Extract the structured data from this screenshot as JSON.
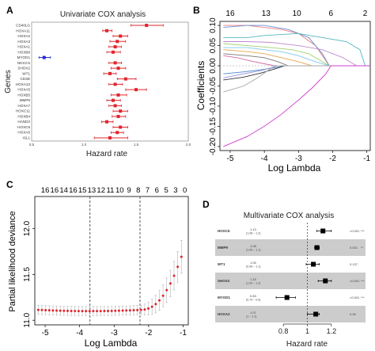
{
  "panels": [
    {
      "letter": "A"
    },
    {
      "letter": "B"
    },
    {
      "letter": "C"
    },
    {
      "letter": "D"
    }
  ],
  "chart_data": [
    {
      "id": "A",
      "type": "forest",
      "title": "Univariate COX analysis",
      "xlabel": "Hazard rate",
      "ylabel": "Genes",
      "xlim": [
        0.5,
        2.0
      ],
      "xticks": [
        "0.5",
        "1.0",
        "1.5",
        "2.0"
      ],
      "genes": [
        "CD40LG",
        "HOXA11",
        "HOXA2",
        "HOXA3",
        "HOXA1",
        "HOXB6",
        "MYOD1",
        "NKX2-5",
        "SHOX2",
        "WT1",
        "CD3D",
        "HOXA13",
        "HOXA5",
        "HOXB5",
        "MMP9",
        "HOXA7",
        "HOXC11",
        "HOXB4",
        "HAND2",
        "HOXC6",
        "HOXA5",
        "ISL1"
      ],
      "hr": [
        1.6,
        1.22,
        1.35,
        1.32,
        1.3,
        1.28,
        0.62,
        1.3,
        1.33,
        1.25,
        1.4,
        1.3,
        1.5,
        1.33,
        1.28,
        1.3,
        1.35,
        1.33,
        1.22,
        1.35,
        1.32,
        1.25
      ],
      "lower": [
        1.45,
        1.18,
        1.28,
        1.25,
        1.24,
        1.22,
        0.57,
        1.24,
        1.26,
        1.19,
        1.32,
        1.24,
        1.4,
        1.26,
        1.22,
        1.24,
        1.28,
        1.27,
        1.17,
        1.28,
        1.26,
        1.1
      ],
      "upper": [
        1.76,
        1.27,
        1.42,
        1.4,
        1.36,
        1.35,
        0.68,
        1.36,
        1.4,
        1.31,
        1.5,
        1.37,
        1.6,
        1.41,
        1.35,
        1.36,
        1.42,
        1.4,
        1.28,
        1.42,
        1.38,
        1.42
      ],
      "colors": {
        "risk": "#e0262d",
        "protective": "#2b2bd1"
      }
    },
    {
      "id": "B",
      "type": "line",
      "xlabel": "Log Lambda",
      "ylabel": "Coefficients",
      "xlim": [
        -5.3,
        -0.9
      ],
      "ylim": [
        -0.21,
        0.11
      ],
      "xticks": [
        "-5",
        "-4",
        "-3",
        "-2",
        "-1"
      ],
      "yticks": [
        "-0.20",
        "-0.15",
        "-0.10",
        "-0.05",
        "0.00",
        "0.05",
        "0.10"
      ],
      "top_ticks": [
        "16",
        "13",
        "10",
        "6",
        "2"
      ],
      "series": [
        {
          "color": "#e87f7f",
          "x": [
            -5.2,
            -4.5,
            -4,
            -3.5,
            -3,
            -2.5,
            -2.1
          ],
          "y": [
            0.1,
            0.1,
            0.095,
            0.09,
            0.08,
            0.05,
            0.0
          ]
        },
        {
          "color": "#6a8fd6",
          "x": [
            -5.2,
            -4.5,
            -4,
            -3.3,
            -2.7,
            -2.3,
            -2.1
          ],
          "y": [
            0.095,
            0.1,
            0.1,
            0.09,
            0.07,
            0.03,
            0.0
          ]
        },
        {
          "color": "#52b7c2",
          "x": [
            -5.2,
            -4.5,
            -4,
            -3,
            -2.3,
            -1.6,
            -1.2,
            -1.05
          ],
          "y": [
            0.07,
            0.07,
            0.075,
            0.08,
            0.07,
            0.06,
            0.04,
            0.0
          ]
        },
        {
          "color": "#c08bd0",
          "x": [
            -5.2,
            -4.5,
            -3.8,
            -3,
            -2.3,
            -1.7,
            -1.3
          ],
          "y": [
            0.06,
            0.06,
            0.058,
            0.05,
            0.04,
            0.02,
            0.0
          ]
        },
        {
          "color": "#9dd26b",
          "x": [
            -5.2,
            -4.5,
            -3.8,
            -3.2,
            -2.7,
            -2.3,
            -2.1
          ],
          "y": [
            0.055,
            0.05,
            0.045,
            0.04,
            0.03,
            0.01,
            0.0
          ]
        },
        {
          "color": "#7cc9e8",
          "x": [
            -5.2,
            -4.5,
            -4,
            -3.5,
            -3,
            -2.5,
            -2.1
          ],
          "y": [
            0.045,
            0.045,
            0.04,
            0.035,
            0.025,
            0.01,
            0.0
          ]
        },
        {
          "color": "#e6a64c",
          "x": [
            -5.2,
            -4.5,
            -4,
            -3.5,
            -3,
            -2.6
          ],
          "y": [
            0.04,
            0.035,
            0.03,
            0.02,
            0.01,
            0.0
          ]
        },
        {
          "color": "#777777",
          "x": [
            -5.2,
            -4.5,
            -4,
            -3.6,
            -3.3
          ],
          "y": [
            0.03,
            0.025,
            0.02,
            0.01,
            0.0
          ]
        },
        {
          "color": "#d16aa3",
          "x": [
            -5.2,
            -4.8,
            -4.4,
            -4,
            -3.7
          ],
          "y": [
            0.025,
            0.02,
            0.012,
            0.005,
            0.0
          ]
        },
        {
          "color": "#4c86c6",
          "x": [
            -5.2,
            -4.6,
            -4.1,
            -3.7,
            -3.4
          ],
          "y": [
            -0.02,
            -0.015,
            -0.01,
            -0.005,
            0.0
          ]
        },
        {
          "color": "#333333",
          "x": [
            -5.2,
            -4.6,
            -4.1,
            -3.7,
            -3.4
          ],
          "y": [
            -0.035,
            -0.028,
            -0.018,
            -0.008,
            0.0
          ]
        },
        {
          "color": "#8f8fe0",
          "x": [
            -5.2,
            -4.6,
            -4.1,
            -3.8,
            -3.6
          ],
          "y": [
            -0.03,
            -0.02,
            -0.012,
            -0.005,
            0.0
          ]
        },
        {
          "color": "#a7a7a7",
          "x": [
            -5.2,
            -4.6,
            -4.2,
            -3.9,
            -3.7
          ],
          "y": [
            -0.065,
            -0.05,
            -0.03,
            -0.012,
            0.0
          ]
        },
        {
          "color": "#cc3fcc",
          "x": [
            -5.2,
            -4.5,
            -4,
            -3.5,
            -3,
            -2.6,
            -2.2,
            -2.05
          ],
          "y": [
            -0.2,
            -0.175,
            -0.15,
            -0.12,
            -0.085,
            -0.055,
            -0.02,
            0.0
          ]
        }
      ]
    },
    {
      "id": "C",
      "type": "scatter",
      "xlabel": "Log Lambda",
      "ylabel": "Partial likelihood deviance",
      "xlim": [
        -5.3,
        -0.85
      ],
      "ylim": [
        10.95,
        12.35
      ],
      "xticks": [
        "-5",
        "-4",
        "-3",
        "-2",
        "-1"
      ],
      "yticks": [
        "11.0",
        "11.5",
        "12.0"
      ],
      "top_ticks": [
        "16",
        "16",
        "14",
        "16",
        "15",
        "13",
        "12",
        "11",
        "10",
        "9",
        "8",
        "7",
        "6",
        "5",
        "3",
        "0"
      ],
      "vlines": [
        -3.7,
        -2.25
      ],
      "point_color": "#e0262d",
      "errbar_color": "#b5b5b5"
    },
    {
      "id": "D",
      "type": "forest",
      "title": "Multivariate COX analysis",
      "xlabel": "Hazard rate",
      "xlim": [
        0.7,
        1.3
      ],
      "xticks": [
        "0.8",
        "1",
        "1.2"
      ],
      "refline": 1,
      "rows": [
        {
          "gene": "HOXC6",
          "hr": "1.13",
          "ci": "(1.08 ~ 1.2)",
          "p": "<0.001",
          "stars": "***",
          "est": 1.13,
          "lo": 1.08,
          "hi": 1.2
        },
        {
          "gene": "MMP9",
          "hr": "1.08",
          "ci": "(1.06 ~ 1.1)",
          "p": "0.001",
          "stars": "**",
          "est": 1.08,
          "lo": 1.06,
          "hi": 1.1
        },
        {
          "gene": "WT1",
          "hr": "1.05",
          "ci": "(0.99 ~ 1.1)",
          "p": "0.137",
          "stars": "",
          "est": 1.05,
          "lo": 0.99,
          "hi": 1.1
        },
        {
          "gene": "SHOX2",
          "hr": "1.15",
          "ci": "(1.09 ~ 1.2)",
          "p": "<0.001",
          "stars": "***",
          "est": 1.15,
          "lo": 1.09,
          "hi": 1.2
        },
        {
          "gene": "MYOD1",
          "hr": "0.83",
          "ci": "(0.74 ~ 0.9)",
          "p": "<0.001",
          "stars": "***",
          "est": 0.83,
          "lo": 0.74,
          "hi": 0.9
        },
        {
          "gene": "HOXA2",
          "hr": "1.07",
          "ci": "(1 ~ 1.1)",
          "p": "0.06",
          "stars": "",
          "est": 1.07,
          "lo": 1.0,
          "hi": 1.1
        }
      ]
    }
  ]
}
